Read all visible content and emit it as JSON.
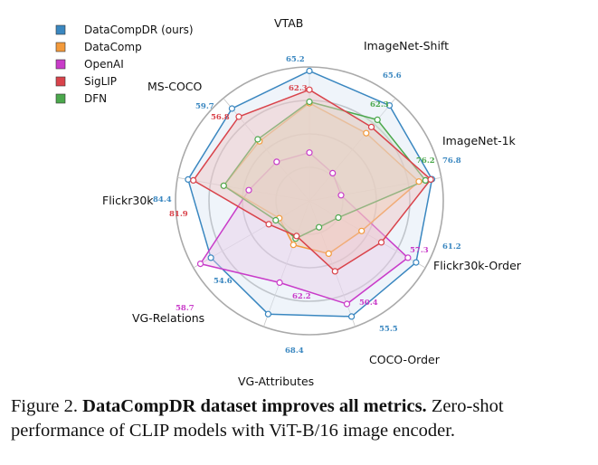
{
  "chart_data": {
    "type": "radar",
    "axes": [
      "VTAB",
      "ImageNet-Shift",
      "ImageNet-1k",
      "Flickr30k-Order",
      "COCO-Order",
      "VG-Attributes",
      "VG-Relations",
      "Flickr30k",
      "MS-COCO"
    ],
    "series": [
      {
        "name": "DataCompDR (ours)",
        "color": "#3a87c0",
        "fill": "#dbe7f3",
        "values": [
          0.97,
          0.93,
          0.93,
          0.92,
          0.92,
          0.9,
          0.85,
          0.92,
          0.9
        ]
      },
      {
        "name": "DataComp",
        "color": "#f39a3b",
        "fill": "#f3d7b0",
        "values": [
          0.73,
          0.66,
          0.83,
          0.45,
          0.42,
          0.35,
          0.26,
          0.65,
          0.58
        ]
      },
      {
        "name": "OpenAI",
        "color": "#c93cc9",
        "fill": "#e9cbe9",
        "values": [
          0.36,
          0.27,
          0.24,
          0.85,
          0.82,
          0.65,
          0.94,
          0.46,
          0.38
        ]
      },
      {
        "name": "SigLIP",
        "color": "#d9434b",
        "fill": "#f0c3c3",
        "values": [
          0.83,
          0.72,
          0.92,
          0.62,
          0.56,
          0.28,
          0.35,
          0.88,
          0.82
        ]
      },
      {
        "name": "DFN",
        "color": "#4ba84c",
        "fill": "#cfe5cf",
        "values": [
          0.74,
          0.79,
          0.88,
          0.25,
          0.21,
          0.3,
          0.29,
          0.65,
          0.6
        ]
      }
    ],
    "value_labels": [
      {
        "axis": 0,
        "text": "65.2",
        "color": "#3a87c0"
      },
      {
        "axis": 0,
        "text": "62.3",
        "color": "#d9434b"
      },
      {
        "axis": 1,
        "text": "65.6",
        "color": "#3a87c0"
      },
      {
        "axis": 1,
        "text": "62.3",
        "color": "#4ba84c"
      },
      {
        "axis": 2,
        "text": "76.2",
        "color": "#4ba84c"
      },
      {
        "axis": 2,
        "text": "76.8",
        "color": "#3a87c0"
      },
      {
        "axis": 3,
        "text": "61.2",
        "color": "#3a87c0"
      },
      {
        "axis": 3,
        "text": "57.3",
        "color": "#c93cc9"
      },
      {
        "axis": 4,
        "text": "55.5",
        "color": "#3a87c0"
      },
      {
        "axis": 4,
        "text": "50.4",
        "color": "#c93cc9"
      },
      {
        "axis": 5,
        "text": "68.4",
        "color": "#3a87c0"
      },
      {
        "axis": 5,
        "text": "62.2",
        "color": "#c93cc9"
      },
      {
        "axis": 6,
        "text": "58.7",
        "color": "#c93cc9"
      },
      {
        "axis": 6,
        "text": "54.6",
        "color": "#3a87c0"
      },
      {
        "axis": 7,
        "text": "84.4",
        "color": "#3a87c0"
      },
      {
        "axis": 7,
        "text": "81.9",
        "color": "#d9434b"
      },
      {
        "axis": 8,
        "text": "59.7",
        "color": "#3a87c0"
      },
      {
        "axis": 8,
        "text": "56.8",
        "color": "#d9434b"
      }
    ],
    "grid": true,
    "legend_position": "top-left"
  },
  "caption": {
    "prefix": "Figure 2.",
    "bold": "DataCompDR dataset improves all metrics.",
    "rest": "Zero-shot performance of CLIP models with ViT-B/16 image encoder."
  }
}
